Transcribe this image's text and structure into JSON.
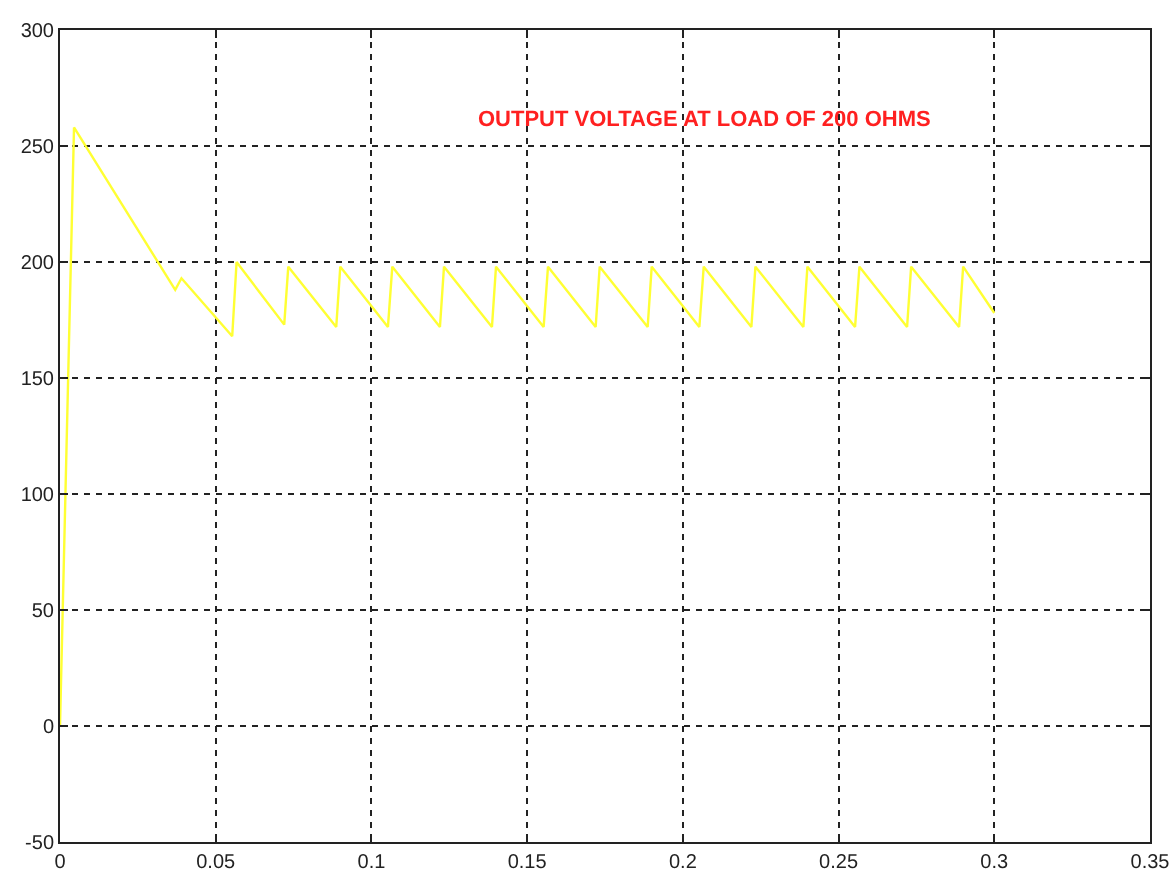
{
  "chart_data": {
    "type": "line",
    "annotations": [
      "OUTPUT VOLTAGE AT LOAD OF 200 OHMS"
    ],
    "series": [
      {
        "color": "#ffff33",
        "x": [
          0,
          0.0045,
          0.037,
          0.039,
          0.0553,
          0.0567,
          0.072,
          0.0733,
          0.0887,
          0.09,
          0.1053,
          0.1067,
          0.122,
          0.1233,
          0.1387,
          0.14,
          0.1553,
          0.1567,
          0.172,
          0.1733,
          0.1887,
          0.19,
          0.2053,
          0.2067,
          0.222,
          0.2233,
          0.2387,
          0.24,
          0.2553,
          0.2567,
          0.272,
          0.2733,
          0.2887,
          0.29,
          0.3
        ],
        "values": [
          0,
          258,
          188,
          193,
          168,
          200,
          173,
          198,
          172,
          198,
          172,
          198,
          172,
          198,
          172,
          198,
          172,
          198,
          172,
          198,
          172,
          198,
          172,
          198,
          172,
          198,
          172,
          198,
          172,
          198,
          172,
          198,
          172,
          198,
          178
        ]
      }
    ],
    "xlim": [
      0,
      0.35
    ],
    "xticks": [
      0,
      0.05,
      0.1,
      0.15,
      0.2,
      0.25,
      0.3,
      0.35
    ],
    "ylim": [
      -50,
      300
    ],
    "yticks": [
      -50,
      0,
      50,
      100,
      150,
      200,
      250,
      300
    ],
    "grid": true,
    "line_style": "solid",
    "marker": "none"
  }
}
